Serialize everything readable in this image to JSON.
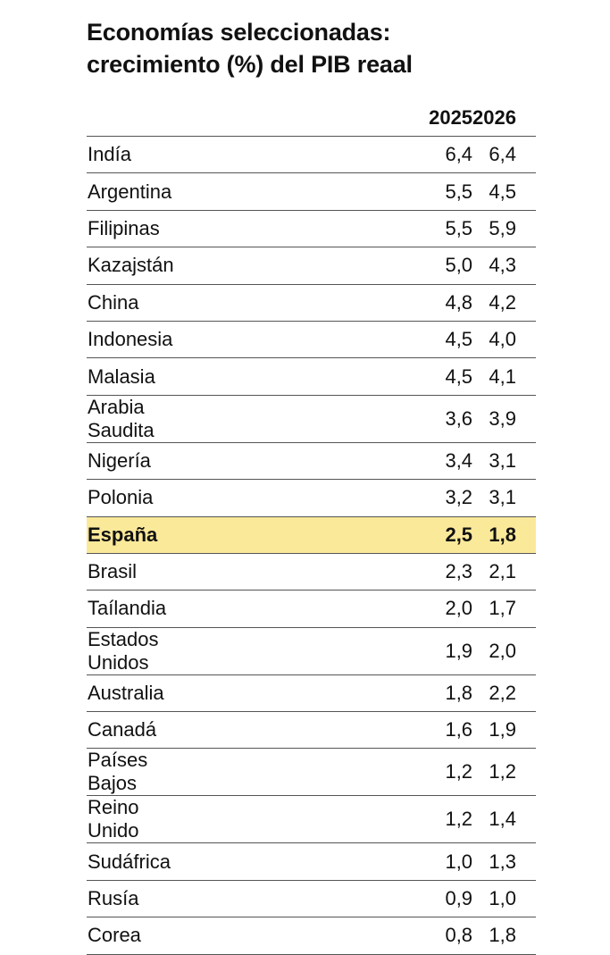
{
  "title_line1": "Economías seleccionadas:",
  "title_line2": "crecimiento (%) del PIB reaal",
  "chart_data": {
    "type": "table",
    "title": "Economías seleccionadas: crecimiento (%) del PIB reaal",
    "columns": [
      "",
      "2025",
      "2026"
    ],
    "highlight_row": "España",
    "highlight_color": "#fbe99a",
    "rows": [
      {
        "country": "Indía",
        "y2025": "6,4",
        "y2026": "6,4"
      },
      {
        "country": "Argentina",
        "y2025": "5,5",
        "y2026": "4,5"
      },
      {
        "country": "Filipinas",
        "y2025": "5,5",
        "y2026": "5,9"
      },
      {
        "country": "Kazajstán",
        "y2025": "5,0",
        "y2026": "4,3"
      },
      {
        "country": "China",
        "y2025": "4,8",
        "y2026": "4,2"
      },
      {
        "country": "Indonesia",
        "y2025": "4,5",
        "y2026": "4,0"
      },
      {
        "country": "Malasia",
        "y2025": "4,5",
        "y2026": "4,1"
      },
      {
        "country": "Arabia Saudita",
        "y2025": "3,6",
        "y2026": "3,9"
      },
      {
        "country": "Nigería",
        "y2025": "3,4",
        "y2026": "3,1"
      },
      {
        "country": "Polonia",
        "y2025": "3,2",
        "y2026": "3,1"
      },
      {
        "country": "España",
        "y2025": "2,5",
        "y2026": "1,8"
      },
      {
        "country": "Brasil",
        "y2025": "2,3",
        "y2026": "2,1"
      },
      {
        "country": "Taílandia",
        "y2025": "2,0",
        "y2026": "1,7"
      },
      {
        "country": "Estados Unidos",
        "y2025": "1,9",
        "y2026": "2,0"
      },
      {
        "country": "Australia",
        "y2025": "1,8",
        "y2026": "2,2"
      },
      {
        "country": "Canadá",
        "y2025": "1,6",
        "y2026": "1,9"
      },
      {
        "country": "Países Bajos",
        "y2025": "1,2",
        "y2026": "1,2"
      },
      {
        "country": "Reino Unido",
        "y2025": "1,2",
        "y2026": "1,4"
      },
      {
        "country": "Sudáfrica",
        "y2025": "1,0",
        "y2026": "1,3"
      },
      {
        "country": "Rusía",
        "y2025": "0,9",
        "y2026": "1,0"
      },
      {
        "country": "Corea",
        "y2025": "0,8",
        "y2026": "1,8"
      }
    ]
  }
}
